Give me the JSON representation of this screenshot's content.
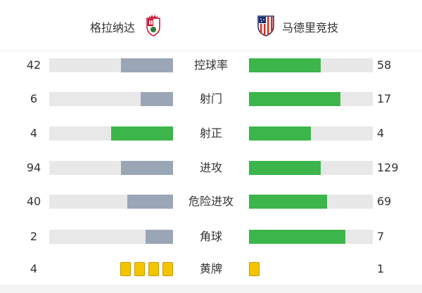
{
  "home_team": {
    "name": "格拉纳达",
    "logo_icon": "granada-crest-icon"
  },
  "away_team": {
    "name": "马德里竞技",
    "logo_icon": "atletico-madrid-crest-icon"
  },
  "colors": {
    "winner": "#3cb54a",
    "loser": "#9aa6b6",
    "track": "#e8e8e8",
    "card": "#f5c400"
  },
  "stats": [
    {
      "label": "控球率",
      "home": "42",
      "away": "58",
      "home_share": 0.42,
      "away_share": 0.58,
      "home_color": "#9aa6b6",
      "away_color": "#3cb54a"
    },
    {
      "label": "射门",
      "home": "6",
      "away": "17",
      "home_share": 0.26,
      "away_share": 0.74,
      "home_color": "#9aa6b6",
      "away_color": "#3cb54a"
    },
    {
      "label": "射正",
      "home": "4",
      "away": "4",
      "home_share": 0.5,
      "away_share": 0.5,
      "home_color": "#3cb54a",
      "away_color": "#3cb54a"
    },
    {
      "label": "进攻",
      "home": "94",
      "away": "129",
      "home_share": 0.42,
      "away_share": 0.58,
      "home_color": "#9aa6b6",
      "away_color": "#3cb54a"
    },
    {
      "label": "危险进攻",
      "home": "40",
      "away": "69",
      "home_share": 0.37,
      "away_share": 0.63,
      "home_color": "#9aa6b6",
      "away_color": "#3cb54a"
    },
    {
      "label": "角球",
      "home": "2",
      "away": "7",
      "home_share": 0.22,
      "away_share": 0.78,
      "home_color": "#9aa6b6",
      "away_color": "#3cb54a"
    }
  ],
  "yellow_cards": {
    "label": "黄牌",
    "home": "4",
    "away": "1",
    "home_count": 4,
    "away_count": 1
  }
}
